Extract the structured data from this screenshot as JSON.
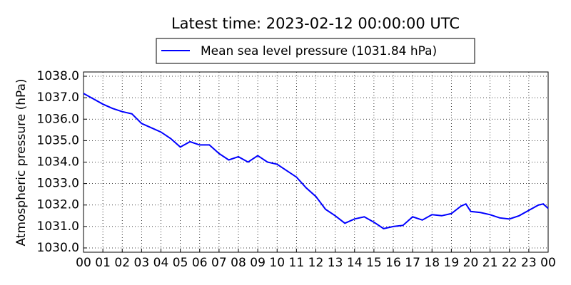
{
  "chart_data": {
    "type": "line",
    "title": "Latest time: 2023-02-12 00:00:00 UTC",
    "y_label": "Atmospheric pressure (hPa)",
    "legend": "top",
    "grid": true,
    "x": [
      0,
      0.5,
      1,
      1.5,
      2,
      2.5,
      3,
      3.5,
      4,
      4.5,
      5,
      5.5,
      6,
      6.5,
      7,
      7.5,
      8,
      8.5,
      9,
      9.5,
      10,
      10.5,
      11,
      11.5,
      12,
      12.5,
      13,
      13.5,
      14,
      14.5,
      15,
      15.5,
      16,
      16.5,
      17,
      17.5,
      18,
      18.5,
      19,
      19.5,
      19.75,
      20,
      20.5,
      21,
      21.5,
      22,
      22.5,
      23,
      23.5,
      23.75,
      24
    ],
    "series": [
      {
        "name": "Mean sea level pressure (1031.84 hPa)",
        "color": "#0000ff",
        "values": [
          1037.2,
          1036.95,
          1036.7,
          1036.5,
          1036.35,
          1036.25,
          1035.8,
          1035.6,
          1035.4,
          1035.1,
          1034.7,
          1034.95,
          1034.8,
          1034.8,
          1034.4,
          1034.1,
          1034.25,
          1034.0,
          1034.3,
          1034.0,
          1033.9,
          1033.6,
          1033.3,
          1032.8,
          1032.4,
          1031.8,
          1031.5,
          1031.15,
          1031.35,
          1031.45,
          1031.2,
          1030.9,
          1031.0,
          1031.05,
          1031.45,
          1031.3,
          1031.55,
          1031.5,
          1031.6,
          1031.95,
          1032.05,
          1031.7,
          1031.65,
          1031.55,
          1031.4,
          1031.35,
          1031.5,
          1031.75,
          1032.0,
          1032.05,
          1031.84
        ]
      }
    ],
    "xlim": [
      0,
      24
    ],
    "xticks": [
      {
        "value": 0,
        "label": "00"
      },
      {
        "value": 1,
        "label": "01"
      },
      {
        "value": 2,
        "label": "02"
      },
      {
        "value": 3,
        "label": "03"
      },
      {
        "value": 4,
        "label": "04"
      },
      {
        "value": 5,
        "label": "05"
      },
      {
        "value": 6,
        "label": "06"
      },
      {
        "value": 7,
        "label": "07"
      },
      {
        "value": 8,
        "label": "08"
      },
      {
        "value": 9,
        "label": "09"
      },
      {
        "value": 10,
        "label": "10"
      },
      {
        "value": 11,
        "label": "11"
      },
      {
        "value": 12,
        "label": "12"
      },
      {
        "value": 13,
        "label": "13"
      },
      {
        "value": 14,
        "label": "14"
      },
      {
        "value": 15,
        "label": "15"
      },
      {
        "value": 16,
        "label": "16"
      },
      {
        "value": 17,
        "label": "17"
      },
      {
        "value": 18,
        "label": "18"
      },
      {
        "value": 19,
        "label": "19"
      },
      {
        "value": 20,
        "label": "20"
      },
      {
        "value": 21,
        "label": "21"
      },
      {
        "value": 22,
        "label": "22"
      },
      {
        "value": 23,
        "label": "23"
      },
      {
        "value": 24,
        "label": "00"
      }
    ],
    "ylim": [
      1029.8,
      1038.2
    ],
    "yticks": [
      {
        "value": 1030,
        "label": "1030.0"
      },
      {
        "value": 1031,
        "label": "1031.0"
      },
      {
        "value": 1032,
        "label": "1032.0"
      },
      {
        "value": 1033,
        "label": "1033.0"
      },
      {
        "value": 1034,
        "label": "1034.0"
      },
      {
        "value": 1035,
        "label": "1035.0"
      },
      {
        "value": 1036,
        "label": "1036.0"
      },
      {
        "value": 1037,
        "label": "1037.0"
      },
      {
        "value": 1038,
        "label": "1038.0"
      }
    ]
  }
}
